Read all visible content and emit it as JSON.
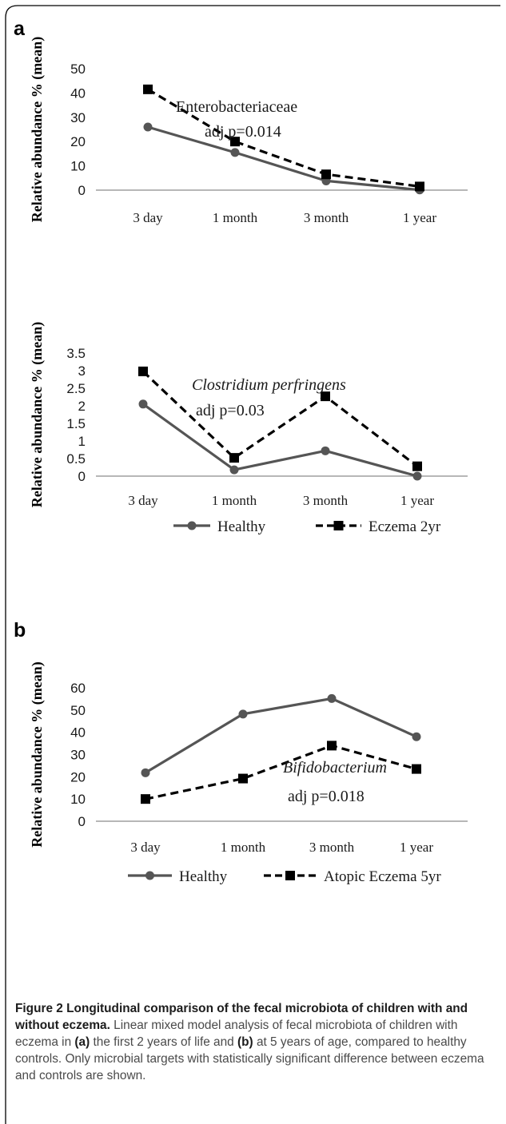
{
  "chart_data": [
    {
      "type": "line",
      "panel_label": "a",
      "categories": [
        "3 day",
        "1 month",
        "3 month",
        "1 year"
      ],
      "series": [
        {
          "name": "Healthy",
          "values": [
            26,
            15.5,
            3.8,
            0.1
          ],
          "color": "#555555",
          "marker": "circle",
          "dash": "solid"
        },
        {
          "name": "Eczema 2yr",
          "values": [
            41.5,
            20,
            6.5,
            1.5
          ],
          "color": "#000000",
          "marker": "square",
          "dash": "dashed"
        }
      ],
      "ylabel": "Relative abundance % (mean)",
      "ylim": [
        0,
        50
      ],
      "yticks": [
        "0",
        "10",
        "20",
        "30",
        "40",
        "50"
      ],
      "annotation": {
        "organism": "Enterobacteriaceae",
        "organism_italic": false,
        "pvalue": "adj p=0.014"
      },
      "legend": "none"
    },
    {
      "type": "line",
      "categories": [
        "3 day",
        "1 month",
        "3 month",
        "1 year"
      ],
      "series": [
        {
          "name": "Healthy",
          "values": [
            2.05,
            0.18,
            0.72,
            0.0
          ],
          "color": "#555555",
          "marker": "circle",
          "dash": "solid"
        },
        {
          "name": "Eczema 2yr",
          "values": [
            2.98,
            0.52,
            2.27,
            0.28
          ],
          "color": "#000000",
          "marker": "square",
          "dash": "dashed"
        }
      ],
      "ylabel": "Relative abundance % (mean)",
      "ylim": [
        0,
        3.5
      ],
      "yticks": [
        "0",
        "0.5",
        "1",
        "1.5",
        "2",
        "2.5",
        "3",
        "3.5"
      ],
      "annotation": {
        "organism": "Clostridium perfringens",
        "organism_italic": true,
        "pvalue": "adj p=0.03"
      },
      "legend": "bottom"
    },
    {
      "type": "line",
      "panel_label": "b",
      "categories": [
        "3 day",
        "1 month",
        "3 month",
        "1 year"
      ],
      "series": [
        {
          "name": "Healthy",
          "values": [
            21.8,
            48.2,
            55.2,
            38
          ],
          "color": "#555555",
          "marker": "circle",
          "dash": "solid"
        },
        {
          "name": "Atopic Eczema 5yr",
          "values": [
            10,
            19.2,
            34,
            23.5
          ],
          "color": "#000000",
          "marker": "square",
          "dash": "dashed"
        }
      ],
      "ylabel": "Relative abundance % (mean)",
      "ylim": [
        0,
        60
      ],
      "yticks": [
        "0",
        "10",
        "20",
        "30",
        "40",
        "50",
        "60"
      ],
      "annotation": {
        "organism": "Bifidobacterium",
        "organism_italic": true,
        "pvalue": "adj p=0.018"
      },
      "legend": "bottom"
    }
  ],
  "caption": {
    "title": "Figure 2 Longitudinal comparison of the fecal microbiota of children with and without eczema.",
    "text_1": " Linear mixed model analysis of fecal microbiota of children with eczema in ",
    "label_a": "(a)",
    "text_2": " the first 2 years of life and ",
    "label_b": "(b)",
    "text_3": " at 5 years of age, compared to healthy controls. Only microbial targets with statistically significant difference between eczema and controls are shown."
  }
}
